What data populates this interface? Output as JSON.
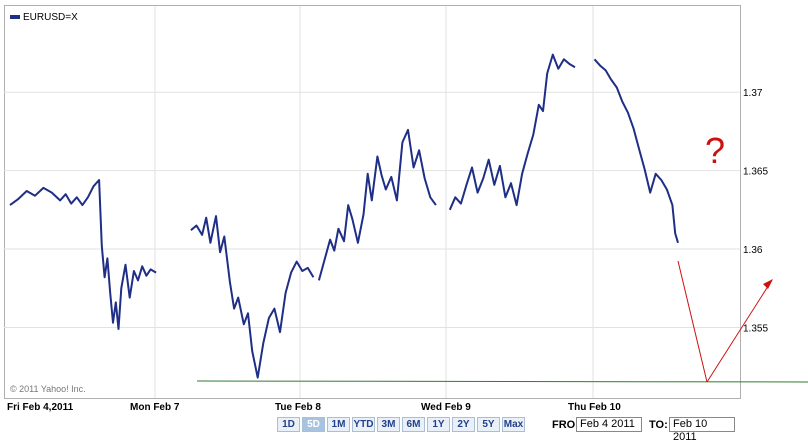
{
  "chart_data": {
    "type": "line",
    "title": "EURUSD=X",
    "copyright": "© 2011 Yahoo! Inc.",
    "annotation": "?",
    "x_tick_labels": [
      "Fri Feb 4,2011",
      "Mon Feb 7",
      "Tue Feb 8",
      "Wed Feb 9",
      "Thu Feb 10"
    ],
    "y_tick_labels": [
      "1.37",
      "1.365",
      "1.36",
      "1.355"
    ],
    "ylim": [
      1.3505,
      1.3755
    ],
    "grid": true,
    "line_color": "#1f2e86",
    "annotation_color": "#cc1111",
    "support_line_color": "#2e7d2e",
    "series": [
      {
        "segments": [
          [
            [
              0.0,
              1.3628
            ],
            [
              0.6,
              1.3632
            ],
            [
              1.2,
              1.3637
            ],
            [
              1.8,
              1.3634
            ],
            [
              2.4,
              1.3639
            ],
            [
              3.0,
              1.3636
            ],
            [
              3.6,
              1.3631
            ],
            [
              4.0,
              1.3635
            ],
            [
              4.4,
              1.3629
            ],
            [
              4.8,
              1.3633
            ],
            [
              5.2,
              1.3628
            ],
            [
              5.6,
              1.3633
            ],
            [
              6.0,
              1.364
            ],
            [
              6.4,
              1.3644
            ],
            [
              6.6,
              1.3602
            ],
            [
              6.8,
              1.3582
            ],
            [
              7.0,
              1.3594
            ],
            [
              7.2,
              1.3572
            ],
            [
              7.4,
              1.3553
            ],
            [
              7.6,
              1.3566
            ],
            [
              7.8,
              1.3549
            ],
            [
              8.0,
              1.3575
            ],
            [
              8.3,
              1.359
            ],
            [
              8.6,
              1.3569
            ],
            [
              8.9,
              1.3586
            ],
            [
              9.2,
              1.358
            ],
            [
              9.5,
              1.3589
            ],
            [
              9.8,
              1.3583
            ],
            [
              10.1,
              1.3587
            ],
            [
              10.5,
              1.3585
            ]
          ],
          [
            [
              13.0,
              1.3612
            ],
            [
              13.4,
              1.3615
            ],
            [
              13.8,
              1.3609
            ],
            [
              14.1,
              1.362
            ],
            [
              14.4,
              1.3604
            ],
            [
              14.8,
              1.3621
            ],
            [
              15.1,
              1.3598
            ],
            [
              15.4,
              1.3608
            ],
            [
              15.8,
              1.3579
            ],
            [
              16.1,
              1.3562
            ],
            [
              16.4,
              1.3569
            ],
            [
              16.8,
              1.3552
            ],
            [
              17.1,
              1.3559
            ],
            [
              17.4,
              1.3535
            ],
            [
              17.8,
              1.3518
            ],
            [
              18.2,
              1.354
            ],
            [
              18.6,
              1.3556
            ],
            [
              19.0,
              1.3562
            ],
            [
              19.4,
              1.3547
            ],
            [
              19.8,
              1.3572
            ],
            [
              20.2,
              1.3585
            ],
            [
              20.6,
              1.3592
            ],
            [
              21.0,
              1.3586
            ],
            [
              21.4,
              1.3588
            ],
            [
              21.8,
              1.3582
            ]
          ],
          [
            [
              22.2,
              1.358
            ],
            [
              22.6,
              1.3593
            ],
            [
              23.0,
              1.3606
            ],
            [
              23.3,
              1.3599
            ],
            [
              23.6,
              1.3613
            ],
            [
              24.0,
              1.3605
            ],
            [
              24.3,
              1.3628
            ],
            [
              24.6,
              1.3619
            ],
            [
              25.0,
              1.3604
            ],
            [
              25.4,
              1.3622
            ],
            [
              25.7,
              1.3648
            ],
            [
              26.0,
              1.3631
            ],
            [
              26.4,
              1.3659
            ],
            [
              26.7,
              1.3647
            ],
            [
              27.0,
              1.3638
            ],
            [
              27.4,
              1.3646
            ],
            [
              27.8,
              1.3631
            ],
            [
              28.2,
              1.3668
            ],
            [
              28.6,
              1.3676
            ],
            [
              29.0,
              1.3652
            ],
            [
              29.4,
              1.3663
            ],
            [
              29.8,
              1.3645
            ],
            [
              30.2,
              1.3633
            ],
            [
              30.6,
              1.3628
            ]
          ],
          [
            [
              31.6,
              1.3625
            ],
            [
              32.0,
              1.3633
            ],
            [
              32.4,
              1.3629
            ],
            [
              32.8,
              1.3641
            ],
            [
              33.2,
              1.3652
            ],
            [
              33.6,
              1.3636
            ],
            [
              34.0,
              1.3645
            ],
            [
              34.4,
              1.3657
            ],
            [
              34.8,
              1.3641
            ],
            [
              35.2,
              1.3653
            ],
            [
              35.6,
              1.3633
            ],
            [
              36.0,
              1.3642
            ],
            [
              36.4,
              1.3628
            ],
            [
              36.8,
              1.3648
            ],
            [
              37.2,
              1.3661
            ],
            [
              37.6,
              1.3673
            ],
            [
              38.0,
              1.3692
            ],
            [
              38.3,
              1.3688
            ],
            [
              38.6,
              1.3712
            ],
            [
              39.0,
              1.3724
            ],
            [
              39.4,
              1.3715
            ],
            [
              39.8,
              1.3721
            ],
            [
              40.2,
              1.3718
            ],
            [
              40.6,
              1.3716
            ]
          ],
          [
            [
              42.0,
              1.3721
            ],
            [
              42.4,
              1.3717
            ],
            [
              42.8,
              1.3714
            ],
            [
              43.2,
              1.3708
            ],
            [
              43.6,
              1.3703
            ],
            [
              44.0,
              1.3694
            ],
            [
              44.4,
              1.3687
            ],
            [
              44.8,
              1.3677
            ],
            [
              45.2,
              1.3664
            ],
            [
              45.6,
              1.3651
            ],
            [
              46.0,
              1.3636
            ],
            [
              46.4,
              1.3648
            ],
            [
              46.8,
              1.3644
            ],
            [
              47.2,
              1.3638
            ],
            [
              47.6,
              1.3628
            ],
            [
              47.8,
              1.361
            ],
            [
              48.0,
              1.3604
            ]
          ]
        ]
      }
    ]
  },
  "range_buttons": [
    "1D",
    "5D",
    "1M",
    "YTD",
    "3M",
    "6M",
    "1Y",
    "2Y",
    "5Y",
    "Max"
  ],
  "active_range": "5D",
  "date_range": {
    "from_label": "FROM:",
    "from_value": "Feb 4 2011",
    "to_label": "TO:",
    "to_value": "Feb 10 2011"
  }
}
